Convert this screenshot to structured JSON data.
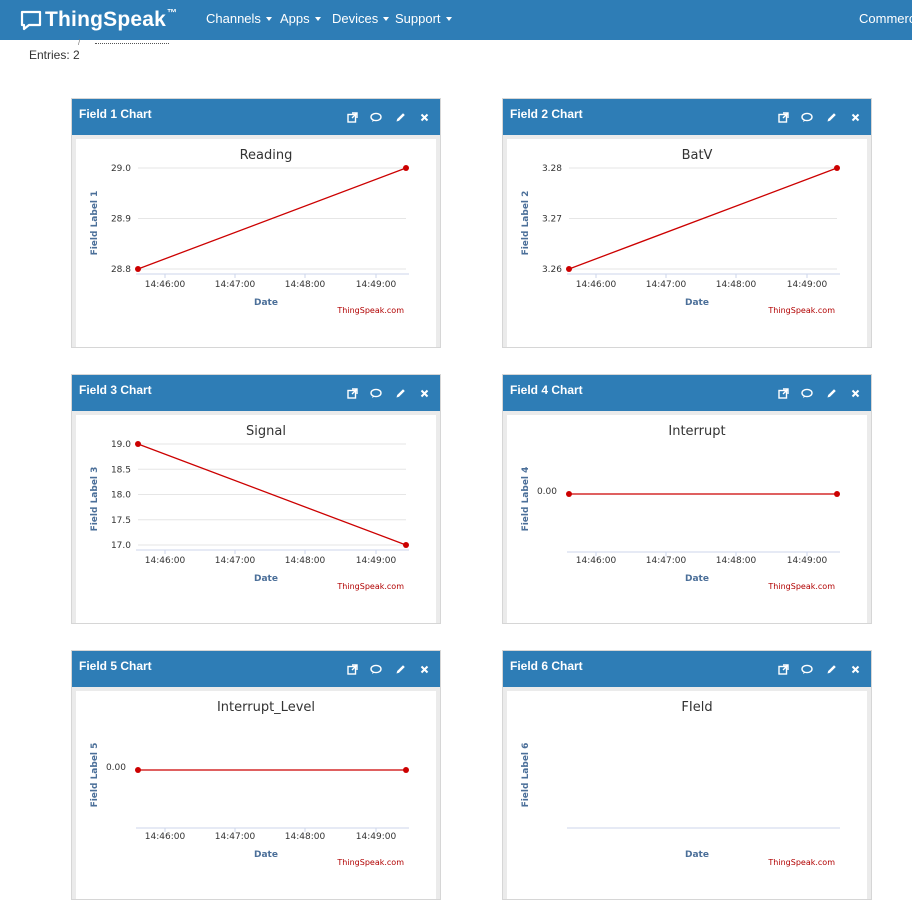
{
  "nav": {
    "brand": "ThingSpeak",
    "tm": "™",
    "menus": [
      "Channels",
      "Apps",
      "Devices",
      "Support"
    ],
    "right": "Commercial"
  },
  "entries": "Entries: 2",
  "colors": {
    "navbar": "#2e7db6",
    "series": "#cc0000",
    "axis_label": "#4b6f99",
    "credit": "#b10000"
  },
  "panel_actions": [
    "external-link-icon",
    "comment-icon",
    "pencil-icon",
    "close-icon"
  ],
  "panels": [
    {
      "title": "Field 1 Chart",
      "chart_data": {
        "type": "line",
        "title": "Reading",
        "xlabel": "Date",
        "ylabel": "Field Label 1",
        "x_ticks": [
          "14:46:00",
          "14:47:00",
          "14:48:00",
          "14:49:00"
        ],
        "y_ticks": [
          "29.0",
          "28.9",
          "28.8"
        ],
        "ylim": [
          28.8,
          29.0
        ],
        "points": [
          {
            "x": "14:45:35",
            "y": 28.8
          },
          {
            "x": "14:49:25",
            "y": 29.0
          }
        ],
        "credit": "ThingSpeak.com"
      }
    },
    {
      "title": "Field 2 Chart",
      "chart_data": {
        "type": "line",
        "title": "BatV",
        "xlabel": "Date",
        "ylabel": "Field Label 2",
        "x_ticks": [
          "14:46:00",
          "14:47:00",
          "14:48:00",
          "14:49:00"
        ],
        "y_ticks": [
          "3.28",
          "3.27",
          "3.26"
        ],
        "ylim": [
          3.26,
          3.28
        ],
        "points": [
          {
            "x": "14:45:35",
            "y": 3.26
          },
          {
            "x": "14:49:25",
            "y": 3.28
          }
        ],
        "credit": "ThingSpeak.com"
      }
    },
    {
      "title": "Field 3 Chart",
      "chart_data": {
        "type": "line",
        "title": "Signal",
        "xlabel": "Date",
        "ylabel": "Field Label 3",
        "x_ticks": [
          "14:46:00",
          "14:47:00",
          "14:48:00",
          "14:49:00"
        ],
        "y_ticks": [
          "19.0",
          "18.5",
          "18.0",
          "17.5",
          "17.0"
        ],
        "ylim": [
          17.0,
          19.0
        ],
        "points": [
          {
            "x": "14:45:35",
            "y": 19.0
          },
          {
            "x": "14:49:25",
            "y": 17.0
          }
        ],
        "credit": "ThingSpeak.com"
      }
    },
    {
      "title": "Field 4 Chart",
      "chart_data": {
        "type": "line",
        "title": "Interrupt",
        "xlabel": "Date",
        "ylabel": "Field Label 4",
        "x_ticks": [
          "14:46:00",
          "14:47:00",
          "14:48:00",
          "14:49:00"
        ],
        "y_ticks": [
          "0.00"
        ],
        "ylim": [
          -1,
          1
        ],
        "points": [
          {
            "x": "14:45:35",
            "y": 0
          },
          {
            "x": "14:49:25",
            "y": 0
          }
        ],
        "credit": "ThingSpeak.com"
      }
    },
    {
      "title": "Field 5 Chart",
      "chart_data": {
        "type": "line",
        "title": "Interrupt_Level",
        "xlabel": "Date",
        "ylabel": "Field Label 5",
        "x_ticks": [
          "14:46:00",
          "14:47:00",
          "14:48:00",
          "14:49:00"
        ],
        "y_ticks": [
          "0.00"
        ],
        "ylim": [
          -1,
          1
        ],
        "points": [
          {
            "x": "14:45:35",
            "y": 0
          },
          {
            "x": "14:49:25",
            "y": 0
          }
        ],
        "credit": "ThingSpeak.com"
      }
    },
    {
      "title": "Field 6 Chart",
      "chart_data": {
        "type": "line",
        "title": "FIeld",
        "xlabel": "Date",
        "ylabel": "Field Label 6",
        "x_ticks": [],
        "y_ticks": [],
        "ylim": [
          -1,
          1
        ],
        "points": [],
        "credit": "ThingSpeak.com"
      }
    }
  ]
}
